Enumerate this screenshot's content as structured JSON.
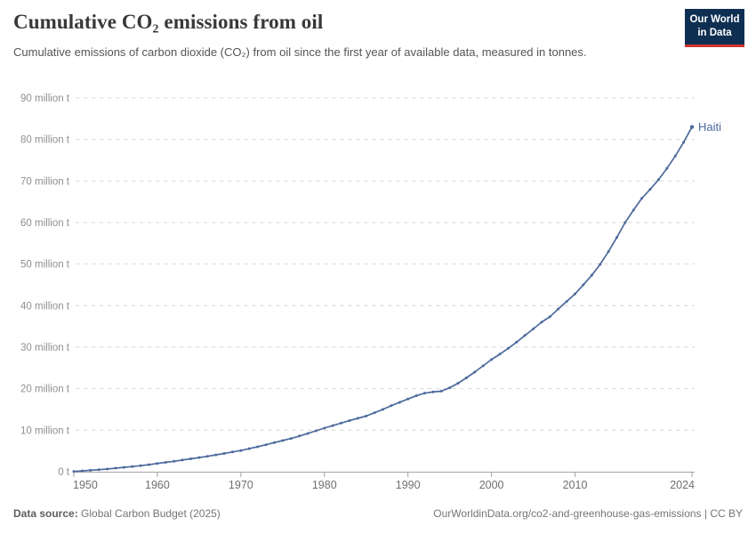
{
  "header": {
    "title": "Cumulative CO₂ emissions from oil",
    "subtitle": "Cumulative emissions of carbon dioxide (CO₂) from oil since the first year of available data, measured in tonnes."
  },
  "logo": {
    "line1": "Our World",
    "line2": "in Data",
    "bg_color": "#0e2f52",
    "accent_color": "#d0342c"
  },
  "chart_data": {
    "type": "line",
    "title": "Cumulative CO₂ emissions from oil",
    "unit": "million t",
    "xlabel": "",
    "ylabel": "",
    "xlim": [
      1950,
      2024
    ],
    "ylim": [
      0,
      90
    ],
    "grid": "dashed-horizontal",
    "legend_position": "end-of-line-label",
    "x": [
      1950,
      1951,
      1952,
      1953,
      1954,
      1955,
      1956,
      1957,
      1958,
      1959,
      1960,
      1961,
      1962,
      1963,
      1964,
      1965,
      1966,
      1967,
      1968,
      1969,
      1970,
      1971,
      1972,
      1973,
      1974,
      1975,
      1976,
      1977,
      1978,
      1979,
      1980,
      1981,
      1982,
      1983,
      1984,
      1985,
      1986,
      1987,
      1988,
      1989,
      1990,
      1991,
      1992,
      1993,
      1994,
      1995,
      1996,
      1997,
      1998,
      1999,
      2000,
      2001,
      2002,
      2003,
      2004,
      2005,
      2006,
      2007,
      2008,
      2009,
      2010,
      2011,
      2012,
      2013,
      2014,
      2015,
      2016,
      2017,
      2018,
      2019,
      2020,
      2021,
      2022,
      2023,
      2024
    ],
    "series": [
      {
        "name": "Haiti",
        "color": "#4C6A9C",
        "values": [
          0.07,
          0.2,
          0.35,
          0.5,
          0.65,
          0.85,
          1.05,
          1.25,
          1.45,
          1.7,
          2.0,
          2.25,
          2.5,
          2.8,
          3.1,
          3.4,
          3.7,
          4.05,
          4.4,
          4.75,
          5.1,
          5.55,
          6.0,
          6.5,
          7.0,
          7.5,
          8.0,
          8.6,
          9.2,
          9.85,
          10.5,
          11.1,
          11.7,
          12.3,
          12.85,
          13.4,
          14.2,
          15.0,
          15.9,
          16.7,
          17.5,
          18.3,
          18.9,
          19.2,
          19.4,
          20.2,
          21.3,
          22.6,
          24.0,
          25.5,
          27.0,
          28.3,
          29.7,
          31.2,
          32.8,
          34.4,
          36.0,
          37.3,
          39.2,
          41.0,
          42.8,
          45.0,
          47.3,
          49.9,
          53.0,
          56.4,
          60.0,
          63.0,
          65.8,
          68.0,
          70.3,
          73.0,
          76.0,
          79.3,
          83.0
        ]
      }
    ],
    "y_ticks": [
      {
        "value": 0,
        "label": "0 t"
      },
      {
        "value": 10,
        "label": "10 million t"
      },
      {
        "value": 20,
        "label": "20 million t"
      },
      {
        "value": 30,
        "label": "30 million t"
      },
      {
        "value": 40,
        "label": "40 million t"
      },
      {
        "value": 50,
        "label": "50 million t"
      },
      {
        "value": 60,
        "label": "60 million t"
      },
      {
        "value": 70,
        "label": "70 million t"
      },
      {
        "value": 80,
        "label": "80 million t"
      },
      {
        "value": 90,
        "label": "90 million t"
      }
    ],
    "x_ticks": [
      {
        "value": 1950,
        "label": "1950"
      },
      {
        "value": 1960,
        "label": "1960"
      },
      {
        "value": 1970,
        "label": "1970"
      },
      {
        "value": 1980,
        "label": "1980"
      },
      {
        "value": 1990,
        "label": "1990"
      },
      {
        "value": 2000,
        "label": "2000"
      },
      {
        "value": 2010,
        "label": "2010"
      },
      {
        "value": 2024,
        "label": "2024"
      }
    ],
    "colors": {
      "grid": "#d9d9d9",
      "axis": "#a3a3a3",
      "y_tick_label": "#8f8f8f",
      "x_tick_label": "#6f6f6f",
      "entity_label": "#4C6A9C"
    }
  },
  "footer": {
    "source_label": "Data source:",
    "source_value": " Global Carbon Budget (2025)",
    "right_text": "OurWorldinData.org/co2-and-greenhouse-gas-emissions | CC BY"
  }
}
